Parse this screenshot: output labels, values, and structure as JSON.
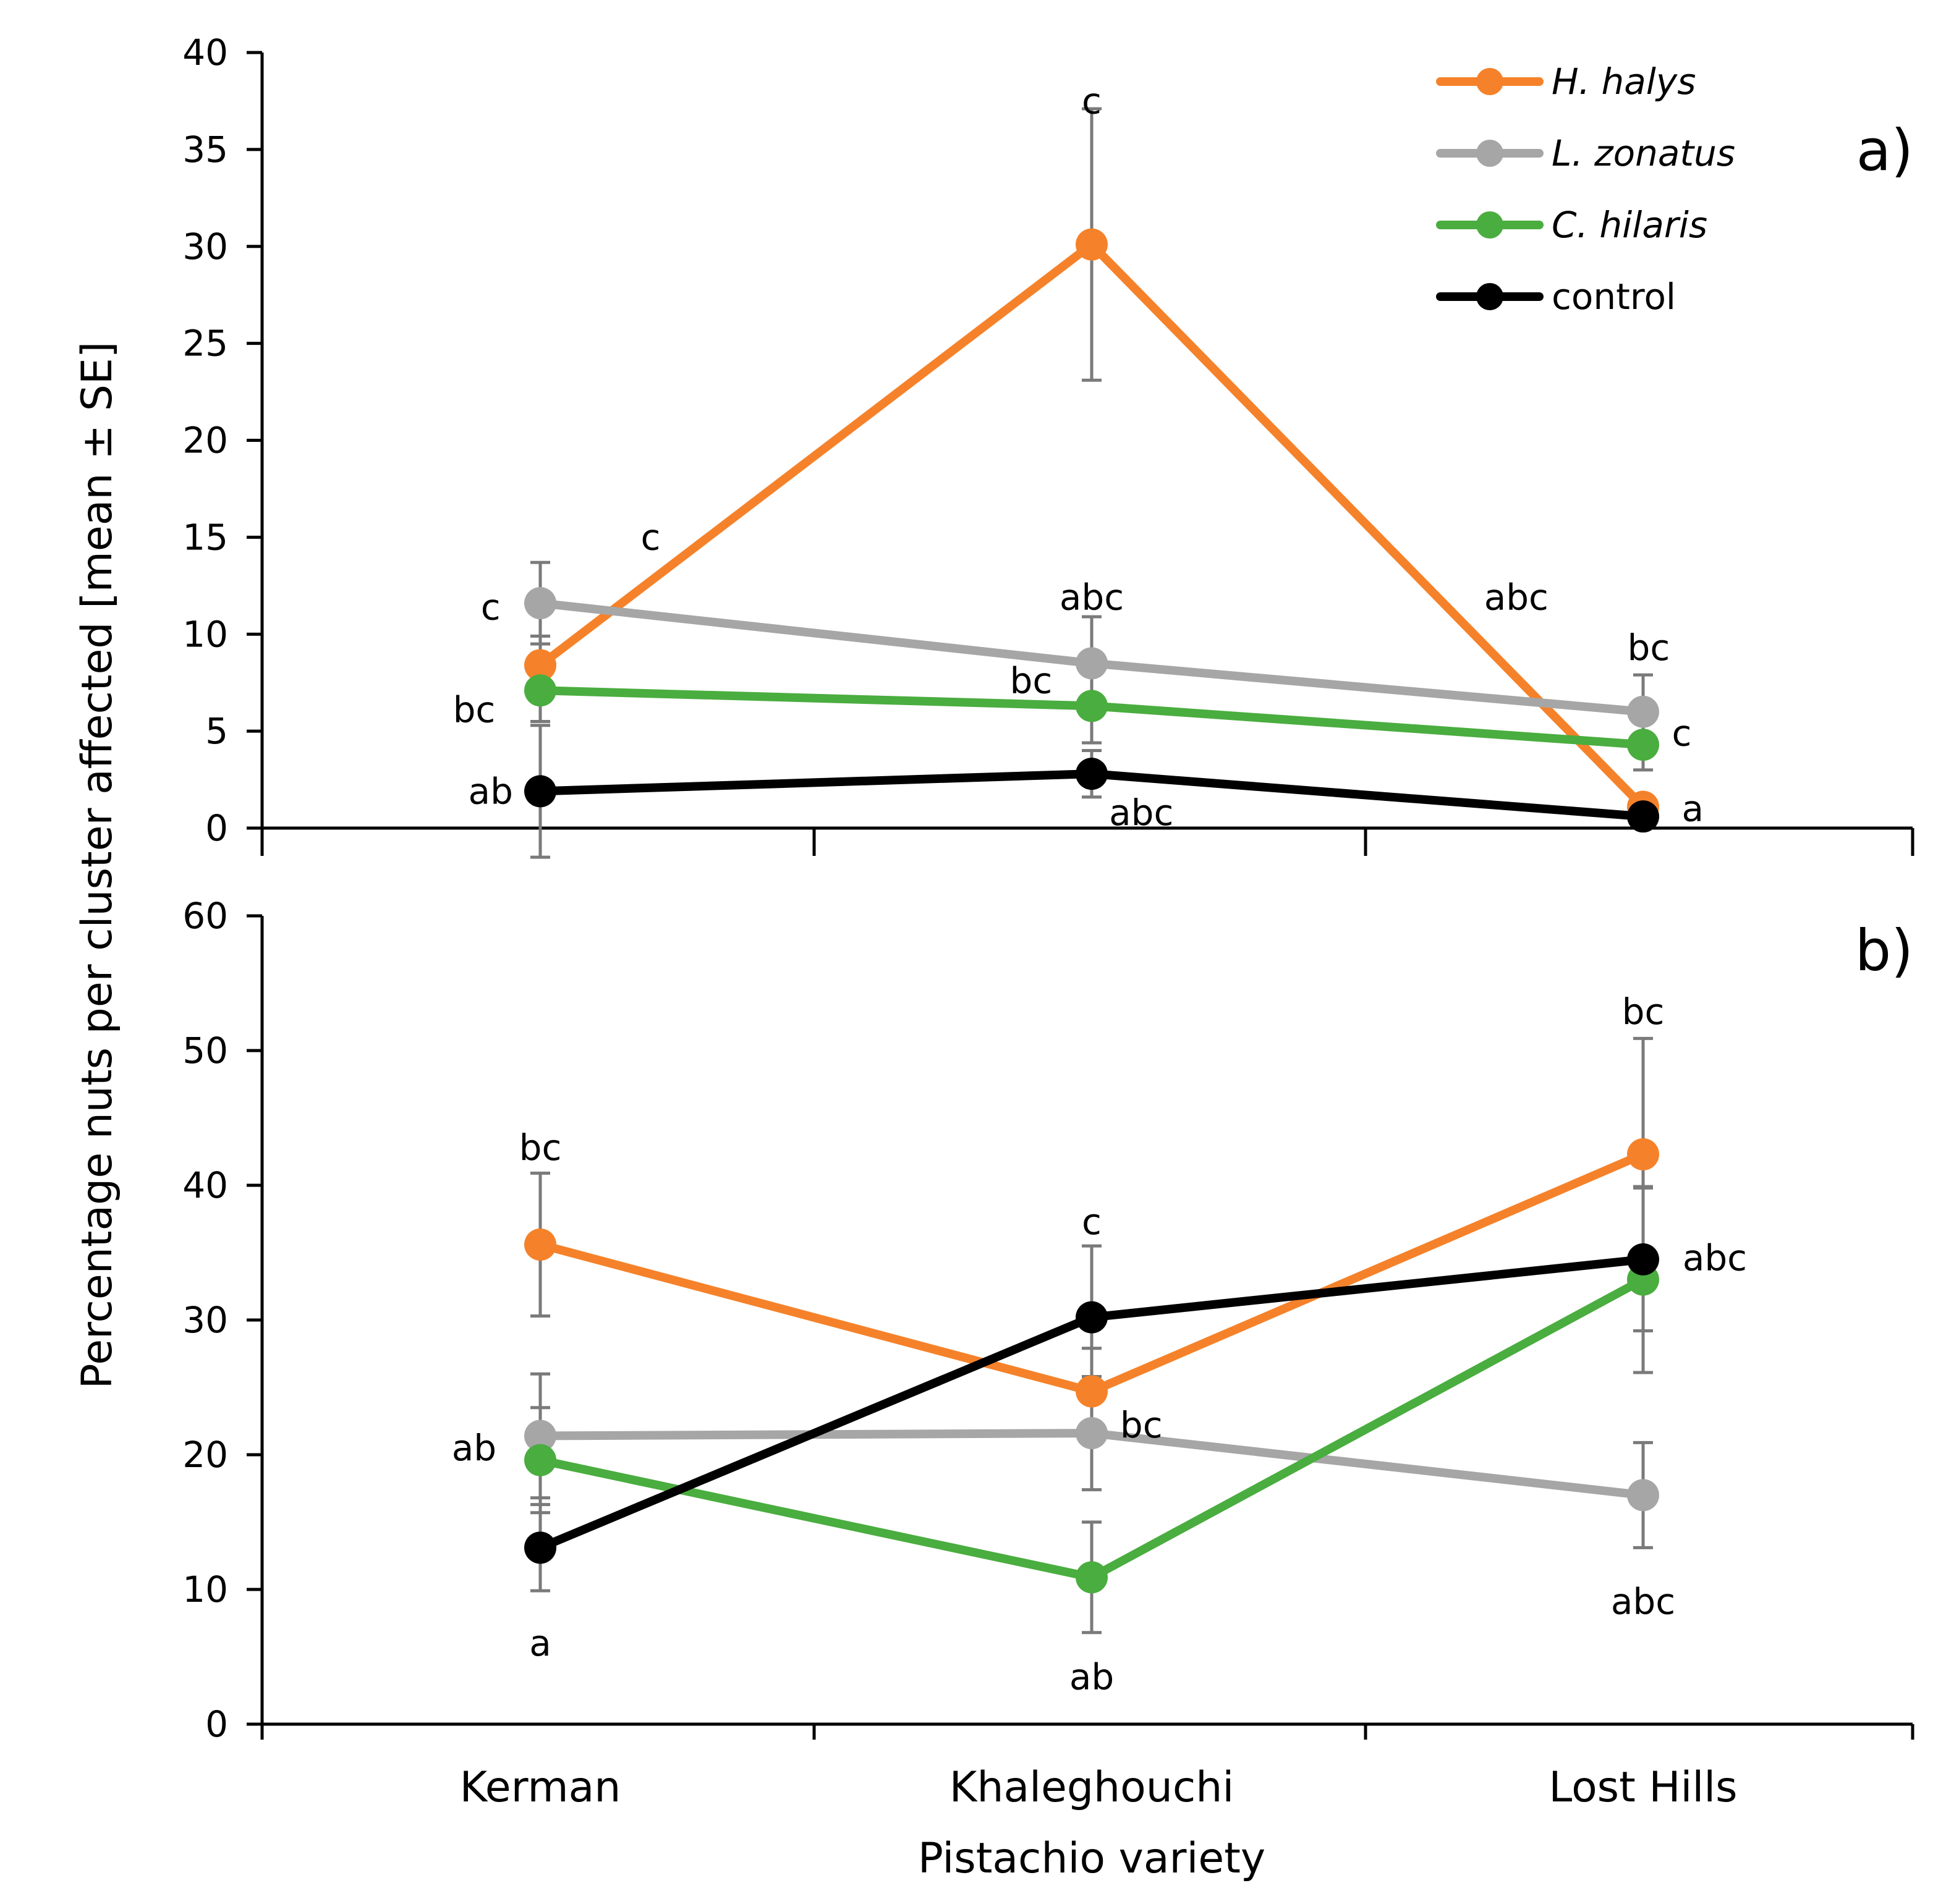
{
  "chart_data": {
    "type": "line",
    "xlabel": "Pistachio variety",
    "ylabel": "Percentage nuts per cluster affected [mean ± SE]",
    "categories": [
      "Kerman",
      "Khaleghouchi",
      "Lost Hills"
    ],
    "legend": {
      "placement": "top-right",
      "entries": [
        {
          "name": "H. halys",
          "italic": true,
          "color": "#f5822a"
        },
        {
          "name": "L. zonatus",
          "italic": true,
          "color": "#a6a6a6"
        },
        {
          "name": "C. hilaris",
          "italic": true,
          "color": "#4aad3f"
        },
        {
          "name": "control",
          "italic": false,
          "color": "#000000"
        }
      ]
    },
    "panels": [
      {
        "label": "a)",
        "ylim": [
          0,
          40
        ],
        "yticks": [
          0,
          5,
          10,
          15,
          20,
          25,
          30,
          35,
          40
        ],
        "series": [
          {
            "name": "H. halys",
            "color": "#f5822a",
            "values": [
              8.4,
              30.1,
              1.1
            ],
            "se": [
              1.5,
              7.0,
              0.4
            ]
          },
          {
            "name": "L. zonatus",
            "color": "#a6a6a6",
            "values": [
              11.6,
              8.5,
              6.0
            ],
            "se": [
              2.1,
              2.4,
              1.9
            ]
          },
          {
            "name": "C. hilaris",
            "color": "#4aad3f",
            "values": [
              7.1,
              6.3,
              4.3
            ],
            "se": [
              1.6,
              1.9,
              1.3
            ]
          },
          {
            "name": "control",
            "color": "#000000",
            "values": [
              1.9,
              2.8,
              0.6
            ],
            "se": [
              3.4,
              1.2,
              0.3
            ]
          }
        ],
        "annotations": [
          {
            "text": "c",
            "cat": 0.2,
            "y": 15.0,
            "anchor": "middle"
          },
          {
            "text": "c",
            "cat": -0.09,
            "y": 11.4,
            "anchor": "middle"
          },
          {
            "text": "bc",
            "cat": -0.12,
            "y": 6.1,
            "anchor": "middle"
          },
          {
            "text": "ab",
            "cat": -0.09,
            "y": 1.9,
            "anchor": "middle"
          },
          {
            "text": "c",
            "cat": 1.0,
            "y": 37.5,
            "anchor": "middle"
          },
          {
            "text": "abc",
            "cat": 1.0,
            "y": 11.9,
            "anchor": "middle"
          },
          {
            "text": "bc",
            "cat": 0.89,
            "y": 7.6,
            "anchor": "middle"
          },
          {
            "text": "abc",
            "cat": 1.09,
            "y": 0.8,
            "anchor": "middle"
          },
          {
            "text": "abc",
            "cat": 1.77,
            "y": 11.9,
            "anchor": "middle"
          },
          {
            "text": "bc",
            "cat": 2.01,
            "y": 9.3,
            "anchor": "middle"
          },
          {
            "text": "c",
            "cat": 2.07,
            "y": 4.9,
            "anchor": "middle"
          },
          {
            "text": "a",
            "cat": 2.09,
            "y": 1.0,
            "anchor": "middle"
          }
        ]
      },
      {
        "label": "b)",
        "ylim": [
          0,
          60
        ],
        "yticks": [
          0,
          10,
          20,
          30,
          40,
          50,
          60
        ],
        "series": [
          {
            "name": "H. halys",
            "color": "#f5822a",
            "values": [
              35.6,
              24.7,
              42.3
            ],
            "se": [
              5.3,
              3.2,
              8.6
            ]
          },
          {
            "name": "L. zonatus",
            "color": "#a6a6a6",
            "values": [
              21.4,
              21.6,
              17.0
            ],
            "se": [
              4.6,
              4.2,
              3.9
            ]
          },
          {
            "name": "C. hilaris",
            "color": "#4aad3f",
            "values": [
              19.6,
              10.9,
              33.0
            ],
            "se": [
              3.9,
              4.1,
              6.9
            ]
          },
          {
            "name": "control",
            "color": "#000000",
            "values": [
              13.1,
              30.2,
              34.5
            ],
            "se": [
              3.2,
              5.3,
              5.3
            ]
          }
        ],
        "annotations": [
          {
            "text": "bc",
            "cat": 0.0,
            "y": 42.8,
            "anchor": "middle"
          },
          {
            "text": "ab",
            "cat": -0.12,
            "y": 20.5,
            "anchor": "middle"
          },
          {
            "text": "a",
            "cat": 0.0,
            "y": 6.0,
            "anchor": "middle"
          },
          {
            "text": "c",
            "cat": 1.0,
            "y": 37.3,
            "anchor": "middle"
          },
          {
            "text": "bc",
            "cat": 1.09,
            "y": 22.2,
            "anchor": "middle"
          },
          {
            "text": "ab",
            "cat": 1.0,
            "y": 3.5,
            "anchor": "middle"
          },
          {
            "text": "bc",
            "cat": 2.0,
            "y": 52.9,
            "anchor": "middle"
          },
          {
            "text": "abc",
            "cat": 2.13,
            "y": 34.6,
            "anchor": "middle"
          },
          {
            "text": "abc",
            "cat": 2.0,
            "y": 9.1,
            "anchor": "middle"
          }
        ]
      }
    ]
  }
}
